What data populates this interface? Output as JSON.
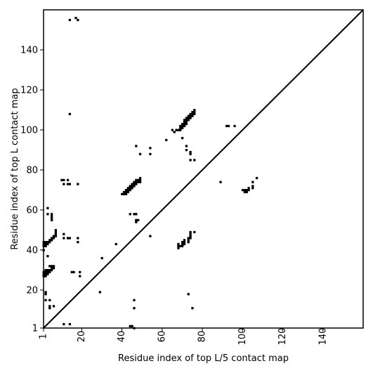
{
  "chart_data": {
    "type": "scatter",
    "xlabel": "Residue index of top L/5 contact map",
    "ylabel": "Residue index of top L contact map",
    "xlim": [
      1,
      160
    ],
    "ylim": [
      1,
      160
    ],
    "xticks": [
      1,
      20,
      40,
      60,
      80,
      100,
      120,
      140
    ],
    "yticks": [
      1,
      20,
      40,
      60,
      80,
      100,
      120,
      140
    ],
    "diagonal": true,
    "grid": false,
    "marker_color": "#000000",
    "points": [
      [
        1,
        27
      ],
      [
        1,
        28
      ],
      [
        1,
        29
      ],
      [
        2,
        27
      ],
      [
        2,
        28
      ],
      [
        2,
        29
      ],
      [
        2,
        30
      ],
      [
        3,
        28
      ],
      [
        3,
        29
      ],
      [
        3,
        30
      ],
      [
        4,
        29
      ],
      [
        4,
        30
      ],
      [
        5,
        30
      ],
      [
        5,
        31
      ],
      [
        5,
        32
      ],
      [
        6,
        31
      ],
      [
        6,
        32
      ],
      [
        4,
        32
      ],
      [
        1,
        42
      ],
      [
        1,
        43
      ],
      [
        1,
        44
      ],
      [
        2,
        42
      ],
      [
        2,
        43
      ],
      [
        2,
        44
      ],
      [
        3,
        43
      ],
      [
        3,
        44
      ],
      [
        4,
        44
      ],
      [
        4,
        45
      ],
      [
        5,
        45
      ],
      [
        5,
        46
      ],
      [
        6,
        46
      ],
      [
        6,
        47
      ],
      [
        7,
        47
      ],
      [
        7,
        48
      ],
      [
        7,
        49
      ],
      [
        7,
        50
      ],
      [
        3,
        61
      ],
      [
        3,
        58
      ],
      [
        5,
        58
      ],
      [
        5,
        57
      ],
      [
        5,
        56
      ],
      [
        5,
        55
      ],
      [
        3,
        37
      ],
      [
        1,
        40
      ],
      [
        2,
        18
      ],
      [
        2,
        19
      ],
      [
        2,
        15
      ],
      [
        4,
        15
      ],
      [
        4,
        12
      ],
      [
        4,
        11
      ],
      [
        6,
        12
      ],
      [
        10,
        75
      ],
      [
        11,
        75
      ],
      [
        11,
        73
      ],
      [
        13,
        75
      ],
      [
        13,
        73
      ],
      [
        14,
        73
      ],
      [
        18,
        73
      ],
      [
        11,
        48
      ],
      [
        11,
        46
      ],
      [
        13,
        46
      ],
      [
        14,
        46
      ],
      [
        18,
        46
      ],
      [
        18,
        44
      ],
      [
        15,
        29
      ],
      [
        16,
        29
      ],
      [
        19,
        29
      ],
      [
        19,
        27
      ],
      [
        11,
        3
      ],
      [
        14,
        3
      ],
      [
        14,
        155
      ],
      [
        17,
        156
      ],
      [
        18,
        155
      ],
      [
        14,
        108
      ],
      [
        29,
        19
      ],
      [
        30,
        36
      ],
      [
        37,
        43
      ],
      [
        40,
        68
      ],
      [
        41,
        68
      ],
      [
        41,
        69
      ],
      [
        42,
        68
      ],
      [
        42,
        69
      ],
      [
        42,
        70
      ],
      [
        43,
        69
      ],
      [
        43,
        70
      ],
      [
        43,
        71
      ],
      [
        44,
        70
      ],
      [
        44,
        71
      ],
      [
        44,
        72
      ],
      [
        45,
        71
      ],
      [
        45,
        72
      ],
      [
        45,
        73
      ],
      [
        46,
        72
      ],
      [
        46,
        73
      ],
      [
        46,
        74
      ],
      [
        47,
        73
      ],
      [
        47,
        74
      ],
      [
        47,
        75
      ],
      [
        48,
        74
      ],
      [
        48,
        75
      ],
      [
        49,
        74
      ],
      [
        49,
        75
      ],
      [
        49,
        76
      ],
      [
        44,
        58
      ],
      [
        46,
        58
      ],
      [
        47,
        58
      ],
      [
        47,
        55
      ],
      [
        47,
        54
      ],
      [
        48,
        55
      ],
      [
        47,
        92
      ],
      [
        49,
        88
      ],
      [
        54,
        91
      ],
      [
        54,
        88
      ],
      [
        62,
        95
      ],
      [
        54,
        47
      ],
      [
        46,
        15
      ],
      [
        46,
        11
      ],
      [
        44,
        2
      ],
      [
        45,
        2
      ],
      [
        46,
        1
      ],
      [
        65,
        100
      ],
      [
        66,
        99
      ],
      [
        67,
        100
      ],
      [
        68,
        100
      ],
      [
        69,
        100
      ],
      [
        69,
        101
      ],
      [
        69,
        102
      ],
      [
        70,
        101
      ],
      [
        70,
        102
      ],
      [
        70,
        103
      ],
      [
        71,
        102
      ],
      [
        71,
        103
      ],
      [
        71,
        104
      ],
      [
        71,
        105
      ],
      [
        72,
        103
      ],
      [
        72,
        104
      ],
      [
        72,
        105
      ],
      [
        72,
        106
      ],
      [
        73,
        105
      ],
      [
        73,
        106
      ],
      [
        73,
        107
      ],
      [
        74,
        106
      ],
      [
        74,
        107
      ],
      [
        74,
        108
      ],
      [
        75,
        107
      ],
      [
        75,
        108
      ],
      [
        75,
        109
      ],
      [
        76,
        108
      ],
      [
        76,
        109
      ],
      [
        76,
        110
      ],
      [
        70,
        96
      ],
      [
        72,
        92
      ],
      [
        72,
        90
      ],
      [
        74,
        89
      ],
      [
        74,
        88
      ],
      [
        74,
        85
      ],
      [
        76,
        85
      ],
      [
        68,
        43
      ],
      [
        68,
        42
      ],
      [
        68,
        41
      ],
      [
        69,
        42
      ],
      [
        70,
        42
      ],
      [
        70,
        43
      ],
      [
        70,
        44
      ],
      [
        71,
        43
      ],
      [
        71,
        44
      ],
      [
        71,
        45
      ],
      [
        73,
        44
      ],
      [
        73,
        45
      ],
      [
        73,
        46
      ],
      [
        74,
        46
      ],
      [
        74,
        47
      ],
      [
        74,
        48
      ],
      [
        76,
        49
      ],
      [
        74,
        49
      ],
      [
        73,
        18
      ],
      [
        75,
        11
      ],
      [
        89,
        74
      ],
      [
        92,
        102
      ],
      [
        93,
        102
      ],
      [
        96,
        102
      ],
      [
        100,
        70
      ],
      [
        101,
        69
      ],
      [
        101,
        70
      ],
      [
        102,
        70
      ],
      [
        102,
        69
      ],
      [
        103,
        70
      ],
      [
        103,
        71
      ],
      [
        105,
        71
      ],
      [
        105,
        72
      ],
      [
        105,
        74
      ],
      [
        107,
        76
      ]
    ]
  }
}
